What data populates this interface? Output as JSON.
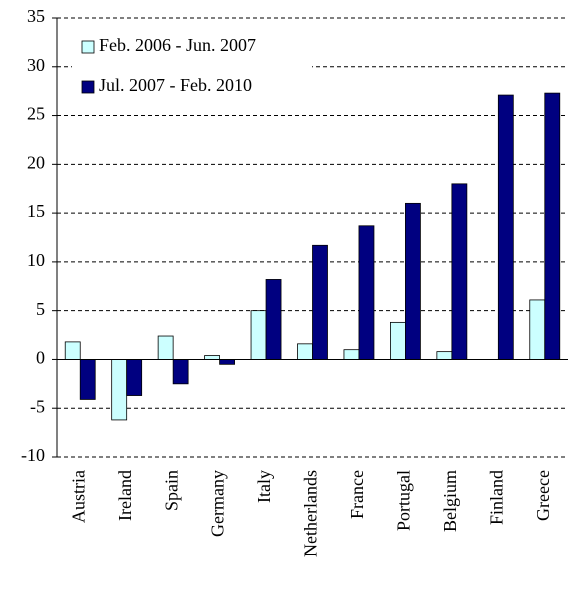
{
  "chart_data": {
    "type": "bar",
    "categories": [
      "Austria",
      "Ireland",
      "Spain",
      "Germany",
      "Italy",
      "Netherlands",
      "France",
      "Portugal",
      "Belgium",
      "Finland",
      "Greece"
    ],
    "series": [
      {
        "name": "Feb. 2006 - Jun. 2007",
        "color": "#ccffff",
        "values": [
          1.8,
          -6.2,
          2.4,
          0.4,
          5.0,
          1.6,
          1.0,
          3.8,
          0.8,
          0,
          6.1
        ]
      },
      {
        "name": "Jul. 2007 - Feb. 2010",
        "color": "#000080",
        "values": [
          -4.1,
          -3.7,
          -2.5,
          -0.5,
          8.2,
          11.7,
          13.7,
          16.0,
          18.0,
          27.1,
          27.3
        ]
      }
    ],
    "ylim": [
      -10,
      35
    ],
    "yticks": [
      -10,
      -5,
      0,
      5,
      10,
      15,
      20,
      25,
      30,
      35
    ],
    "grid": true,
    "legend": "upper left"
  }
}
